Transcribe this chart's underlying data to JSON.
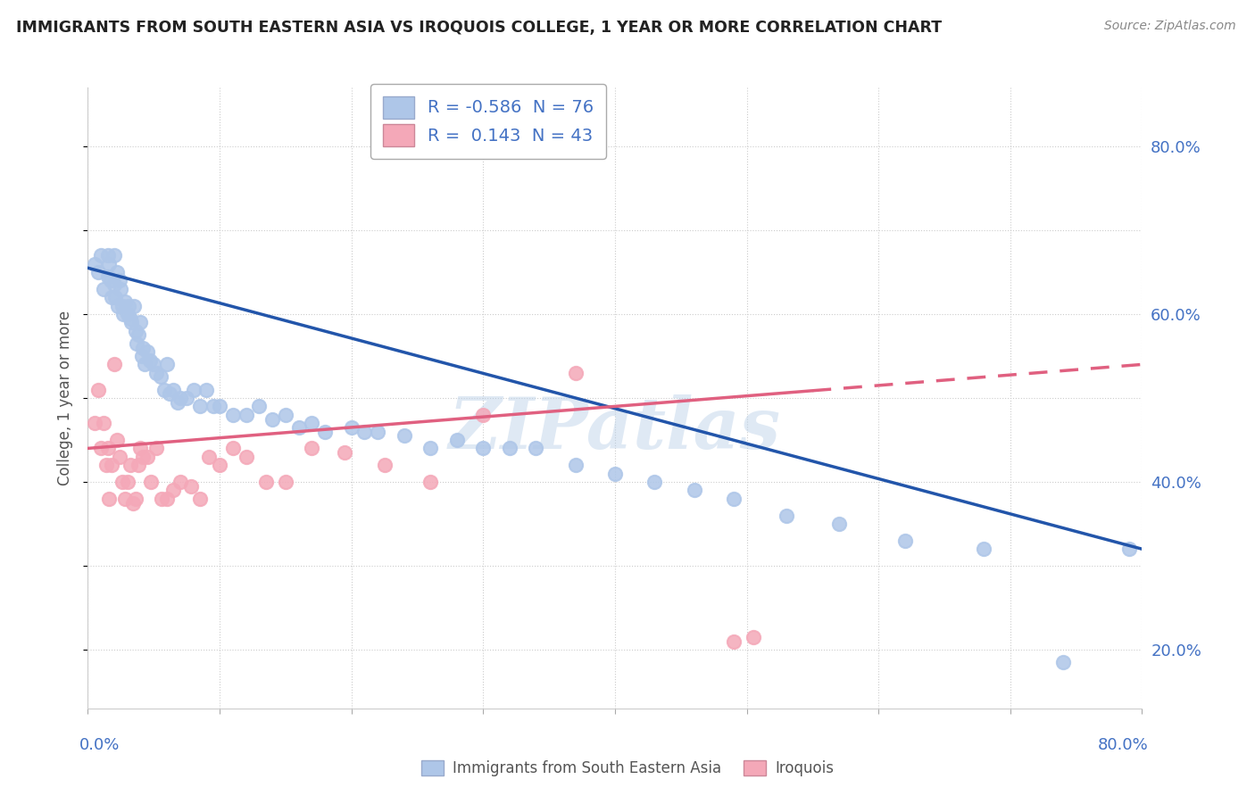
{
  "title": "IMMIGRANTS FROM SOUTH EASTERN ASIA VS IROQUOIS COLLEGE, 1 YEAR OR MORE CORRELATION CHART",
  "source": "Source: ZipAtlas.com",
  "xlabel_bottom_left": "0.0%",
  "xlabel_bottom_right": "80.0%",
  "ylabel": "College, 1 year or more",
  "right_ytick_labels": [
    "20.0%",
    "40.0%",
    "60.0%",
    "80.0%"
  ],
  "right_ytick_values": [
    0.2,
    0.4,
    0.6,
    0.8
  ],
  "xmin": 0.0,
  "xmax": 0.8,
  "ymin": 0.13,
  "ymax": 0.87,
  "series1_color": "#aec6e8",
  "series2_color": "#f4a8b8",
  "trendline1_color": "#2255aa",
  "trendline2_color": "#e06080",
  "R1": -0.586,
  "N1": 76,
  "R2": 0.143,
  "N2": 43,
  "legend_label1": "Immigrants from South Eastern Asia",
  "legend_label2": "Iroquois",
  "watermark": "ZIPatlas",
  "background_color": "#ffffff",
  "grid_color": "#cccccc",
  "title_color": "#222222",
  "axis_label_color": "#4472c4",
  "series1_x": [
    0.005,
    0.008,
    0.01,
    0.012,
    0.015,
    0.015,
    0.016,
    0.017,
    0.018,
    0.02,
    0.02,
    0.021,
    0.022,
    0.023,
    0.024,
    0.025,
    0.026,
    0.027,
    0.028,
    0.03,
    0.031,
    0.032,
    0.033,
    0.035,
    0.036,
    0.037,
    0.038,
    0.04,
    0.041,
    0.042,
    0.043,
    0.045,
    0.047,
    0.05,
    0.052,
    0.055,
    0.058,
    0.06,
    0.062,
    0.065,
    0.068,
    0.07,
    0.075,
    0.08,
    0.085,
    0.09,
    0.095,
    0.1,
    0.11,
    0.12,
    0.13,
    0.14,
    0.15,
    0.16,
    0.17,
    0.18,
    0.2,
    0.21,
    0.22,
    0.24,
    0.26,
    0.28,
    0.3,
    0.32,
    0.34,
    0.37,
    0.4,
    0.43,
    0.46,
    0.49,
    0.53,
    0.57,
    0.62,
    0.68,
    0.74,
    0.79
  ],
  "series1_y": [
    0.66,
    0.65,
    0.67,
    0.63,
    0.67,
    0.645,
    0.66,
    0.64,
    0.62,
    0.67,
    0.635,
    0.62,
    0.65,
    0.61,
    0.64,
    0.63,
    0.61,
    0.6,
    0.615,
    0.6,
    0.61,
    0.595,
    0.59,
    0.61,
    0.58,
    0.565,
    0.575,
    0.59,
    0.55,
    0.56,
    0.54,
    0.555,
    0.545,
    0.54,
    0.53,
    0.525,
    0.51,
    0.54,
    0.505,
    0.51,
    0.495,
    0.5,
    0.5,
    0.51,
    0.49,
    0.51,
    0.49,
    0.49,
    0.48,
    0.48,
    0.49,
    0.475,
    0.48,
    0.465,
    0.47,
    0.46,
    0.465,
    0.46,
    0.46,
    0.455,
    0.44,
    0.45,
    0.44,
    0.44,
    0.44,
    0.42,
    0.41,
    0.4,
    0.39,
    0.38,
    0.36,
    0.35,
    0.33,
    0.32,
    0.185,
    0.32
  ],
  "series2_x": [
    0.005,
    0.008,
    0.01,
    0.012,
    0.014,
    0.015,
    0.016,
    0.018,
    0.02,
    0.022,
    0.024,
    0.026,
    0.028,
    0.03,
    0.032,
    0.034,
    0.036,
    0.038,
    0.04,
    0.042,
    0.045,
    0.048,
    0.052,
    0.056,
    0.06,
    0.065,
    0.07,
    0.078,
    0.085,
    0.092,
    0.1,
    0.11,
    0.12,
    0.135,
    0.15,
    0.17,
    0.195,
    0.225,
    0.26,
    0.3,
    0.37,
    0.49,
    0.505
  ],
  "series2_y": [
    0.47,
    0.51,
    0.44,
    0.47,
    0.42,
    0.44,
    0.38,
    0.42,
    0.54,
    0.45,
    0.43,
    0.4,
    0.38,
    0.4,
    0.42,
    0.375,
    0.38,
    0.42,
    0.44,
    0.43,
    0.43,
    0.4,
    0.44,
    0.38,
    0.38,
    0.39,
    0.4,
    0.395,
    0.38,
    0.43,
    0.42,
    0.44,
    0.43,
    0.4,
    0.4,
    0.44,
    0.435,
    0.42,
    0.4,
    0.48,
    0.53,
    0.21,
    0.215
  ],
  "trend1_x0": 0.0,
  "trend1_y0": 0.655,
  "trend1_x1": 0.8,
  "trend1_y1": 0.32,
  "trend2_x0": 0.0,
  "trend2_y0": 0.44,
  "trend2_x1": 0.8,
  "trend2_y1": 0.54,
  "trend2_solid_end": 0.55
}
